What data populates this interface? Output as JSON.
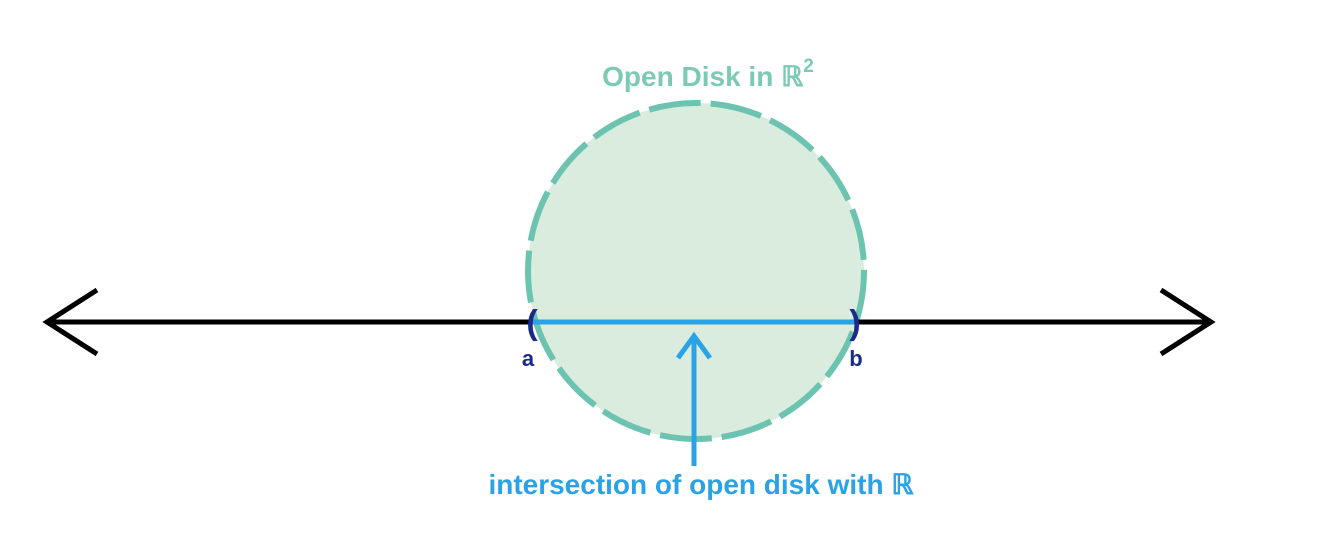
{
  "title": {
    "text": "Open Disk in ℝ",
    "superscript": "2"
  },
  "endpoints": {
    "a": "a",
    "b": "b",
    "left_bracket": "(",
    "right_bracket": ")"
  },
  "caption": "intersection of open disk with ℝ",
  "colors": {
    "disk_fill": "#d9ecdd",
    "disk_stroke": "#6cc4b0",
    "title": "#7ccab6",
    "number_line": "#000000",
    "interval": "#2aa3e6",
    "endpoint_labels": "#1c2a8c",
    "caption": "#2aa3e6"
  }
}
